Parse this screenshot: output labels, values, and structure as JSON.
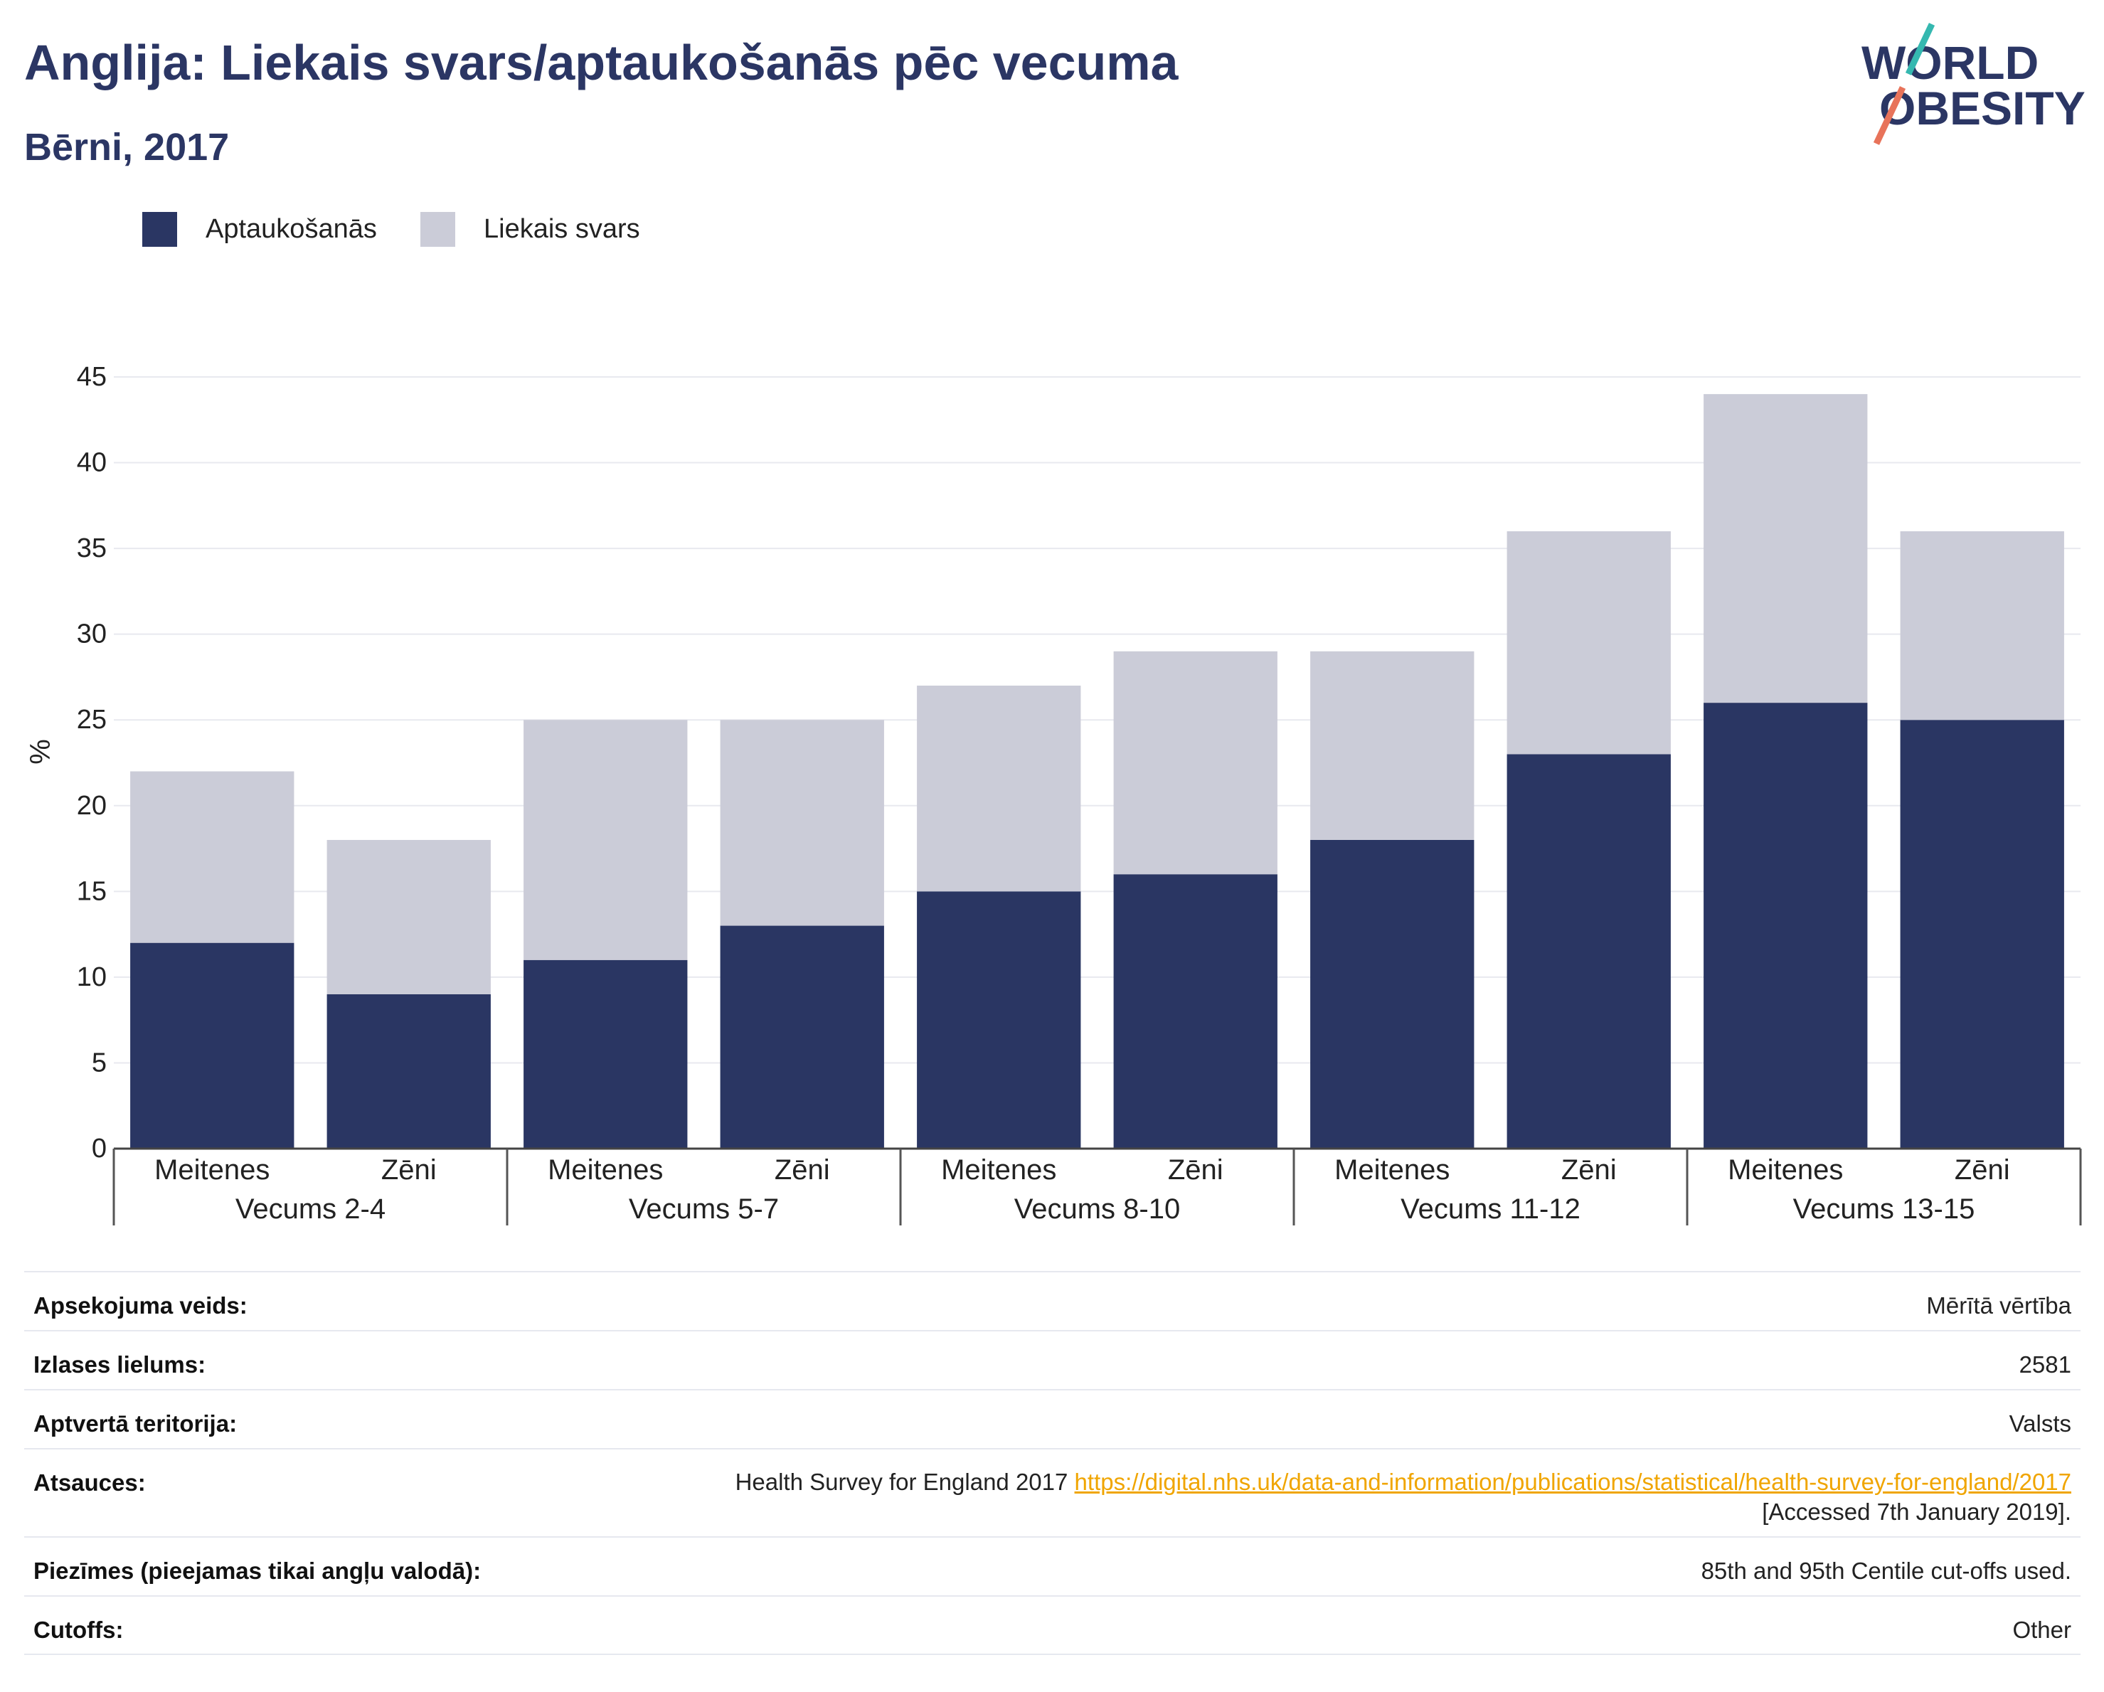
{
  "chart_data": {
    "type": "bar",
    "stacked": true,
    "title": "Anglija: Liekais svars/aptaukošanās pēc vecuma",
    "subtitle": "Bērni, 2017",
    "ylabel": "%",
    "ylim": [
      0,
      45
    ],
    "yticks": [
      0,
      5,
      10,
      15,
      20,
      25,
      30,
      35,
      40,
      45
    ],
    "grid": true,
    "legend_position": "top-left",
    "groups": [
      {
        "label": "Vecums 2-4",
        "categories": [
          "Meitenes",
          "Zēni"
        ]
      },
      {
        "label": "Vecums 5-7",
        "categories": [
          "Meitenes",
          "Zēni"
        ]
      },
      {
        "label": "Vecums 8-10",
        "categories": [
          "Meitenes",
          "Zēni"
        ]
      },
      {
        "label": "Vecums 11-12",
        "categories": [
          "Meitenes",
          "Zēni"
        ]
      },
      {
        "label": "Vecums 13-15",
        "categories": [
          "Meitenes",
          "Zēni"
        ]
      }
    ],
    "series": [
      {
        "name": "Aptaukošanās",
        "color": "#2a3663",
        "values": [
          12,
          9,
          11,
          13,
          15,
          16,
          18,
          23,
          26,
          25
        ]
      },
      {
        "name": "Liekais svars",
        "color": "#cbccd8",
        "values": [
          10,
          9,
          14,
          12,
          12,
          13,
          11,
          13,
          18,
          11
        ]
      }
    ]
  },
  "logo": {
    "line1": "WORLD",
    "line2": "OBESITY",
    "text_color": "#2b3664",
    "accent_top": "#35b8b0",
    "accent_bottom": "#e8735a"
  },
  "info_table": {
    "link_color": "#f0a500",
    "rows": [
      {
        "label": "Apsekojuma veids:",
        "value": "Mērītā vērtība"
      },
      {
        "label": "Izlases lielums:",
        "value": "2581"
      },
      {
        "label": "Aptvertā teritorija:",
        "value": "Valsts"
      },
      {
        "label": "Atsauces:",
        "value": "Health Survey for England 2017",
        "link": "https://digital.nhs.uk/data-and-information/publications/statistical/health-survey-for-england/2017",
        "accessed": "[Accessed 7th January 2019]."
      },
      {
        "label": "Piezīmes (pieejamas tikai angļu valodā):",
        "value": "85th and 95th Centile cut-offs used."
      },
      {
        "label": "Cutoffs:",
        "value": "Other"
      }
    ]
  }
}
